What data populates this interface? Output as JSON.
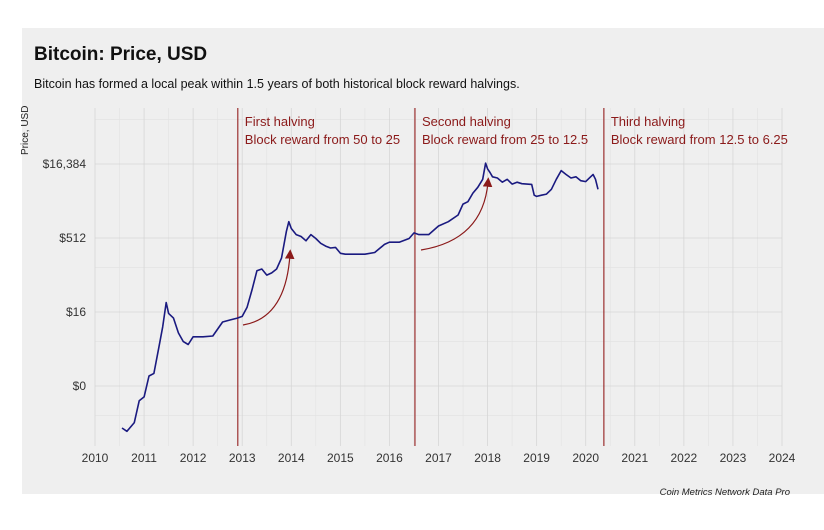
{
  "chart_data": {
    "type": "line",
    "title": "Bitcoin: Price, USD",
    "subtitle": "Bitcoin has formed a local peak within 1.5 years of both historical block reward halvings.",
    "ylabel": "Price, USD",
    "xlabel": "",
    "y_scale": "log2",
    "y_ticks": [
      "$0",
      "$16",
      "$512",
      "$16,384"
    ],
    "y_tick_values": [
      0.5,
      16,
      512,
      16384
    ],
    "x_ticks": [
      "2010",
      "2011",
      "2012",
      "2013",
      "2014",
      "2015",
      "2016",
      "2017",
      "2018",
      "2019",
      "2020",
      "2021",
      "2022",
      "2023",
      "2024"
    ],
    "xlim": [
      2010,
      2024
    ],
    "grid": true,
    "series": [
      {
        "color": "#1a1a80",
        "x": [
          2010.55,
          2010.65,
          2010.8,
          2010.9,
          2011.0,
          2011.1,
          2011.2,
          2011.3,
          2011.38,
          2011.45,
          2011.5,
          2011.6,
          2011.7,
          2011.8,
          2011.9,
          2012.0,
          2012.2,
          2012.4,
          2012.6,
          2012.75,
          2012.9,
          2013.0,
          2013.1,
          2013.2,
          2013.3,
          2013.4,
          2013.5,
          2013.6,
          2013.7,
          2013.8,
          2013.9,
          2013.95,
          2014.0,
          2014.1,
          2014.2,
          2014.3,
          2014.4,
          2014.5,
          2014.6,
          2014.7,
          2014.8,
          2014.9,
          2015.0,
          2015.1,
          2015.3,
          2015.5,
          2015.7,
          2015.9,
          2016.0,
          2016.2,
          2016.4,
          2016.5,
          2016.6,
          2016.8,
          2017.0,
          2017.2,
          2017.4,
          2017.5,
          2017.6,
          2017.7,
          2017.8,
          2017.9,
          2017.96,
          2018.0,
          2018.05,
          2018.1,
          2018.2,
          2018.3,
          2018.4,
          2018.5,
          2018.6,
          2018.7,
          2018.8,
          2018.9,
          2018.95,
          2019.0,
          2019.1,
          2019.2,
          2019.3,
          2019.4,
          2019.5,
          2019.6,
          2019.7,
          2019.8,
          2019.9,
          2020.0,
          2020.1,
          2020.15,
          2020.2,
          2020.25
        ],
        "y": [
          0.07,
          0.06,
          0.09,
          0.25,
          0.3,
          0.8,
          0.9,
          3,
          8,
          25,
          15,
          12,
          6,
          4,
          3.5,
          5,
          5,
          5.2,
          10,
          11,
          12,
          13,
          20,
          45,
          110,
          120,
          90,
          100,
          120,
          200,
          700,
          1100,
          800,
          600,
          550,
          450,
          600,
          500,
          400,
          350,
          320,
          330,
          250,
          240,
          240,
          240,
          260,
          380,
          420,
          420,
          500,
          650,
          600,
          600,
          900,
          1100,
          1500,
          2500,
          2800,
          4200,
          5500,
          8000,
          17000,
          13000,
          11000,
          9000,
          8500,
          7000,
          8000,
          6400,
          7000,
          6500,
          6400,
          6300,
          3800,
          3600,
          3800,
          4000,
          5000,
          8000,
          12000,
          10000,
          8500,
          9000,
          7500,
          7200,
          9000,
          10000,
          8000,
          5000
        ]
      }
    ],
    "annotations": [
      {
        "line1": "First halving",
        "line2": "Block reward from 50 to 25",
        "x": 2012.91
      },
      {
        "line1": "Second halving",
        "line2": "Block reward from 25 to 12.5",
        "x": 2016.52
      },
      {
        "line1": "Third halving",
        "line2": "Block reward from 12.5 to 6.25",
        "x": 2020.37
      }
    ]
  },
  "source": "Coin Metrics Network Data Pro"
}
